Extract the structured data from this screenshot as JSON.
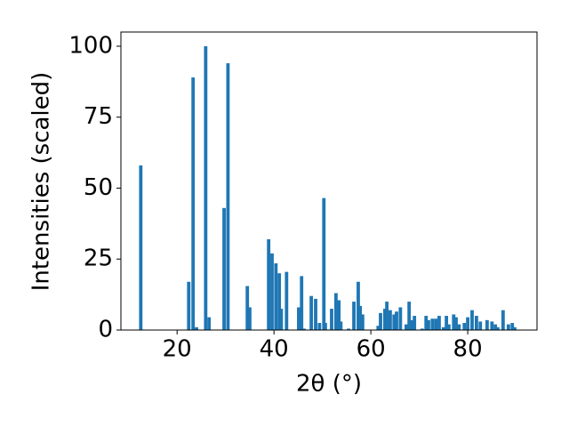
{
  "chart_data": {
    "type": "bar",
    "xlabel": "2θ (°)",
    "ylabel": "Intensities (scaled)",
    "color": "#1f77b4",
    "x": [
      12.5,
      22.4,
      23.3,
      24.0,
      25.9,
      26.6,
      29.7,
      30.5,
      34.5,
      35.0,
      38.9,
      39.6,
      40.4,
      41.1,
      41.5,
      42.6,
      45.1,
      45.7,
      46.2,
      47.7,
      48.6,
      49.4,
      50.3,
      50.6,
      51.9,
      52.8,
      53.4,
      53.8,
      55.4,
      56.5,
      57.4,
      57.8,
      58.3,
      61.5,
      62.0,
      62.9,
      63.3,
      64.0,
      64.8,
      65.3,
      66.1,
      67.3,
      67.9,
      68.4,
      69.0,
      70.6,
      71.4,
      71.9,
      72.7,
      73.4,
      74.1,
      75.0,
      75.6,
      76.1,
      77.1,
      77.6,
      78.2,
      79.3,
      80.0,
      80.9,
      81.8,
      82.6,
      84.0,
      85.0,
      85.7,
      86.2,
      87.3,
      88.4,
      89.2,
      89.7
    ],
    "values": [
      58,
      17,
      89,
      1,
      100,
      4.5,
      43,
      94,
      15.5,
      8,
      32,
      27,
      23.5,
      20,
      7.5,
      20.5,
      8,
      19,
      0.5,
      12,
      11,
      2.5,
      46.5,
      2.5,
      7.5,
      13,
      10.5,
      3,
      0.5,
      10,
      17,
      8.5,
      5.5,
      1.5,
      6,
      7.5,
      10,
      7,
      5.5,
      6.5,
      8,
      2,
      10,
      3.5,
      5,
      0.5,
      5,
      3.5,
      4,
      4,
      5,
      1,
      5,
      2,
      5.5,
      4.5,
      2,
      2.5,
      4.5,
      7,
      5,
      3,
      3.5,
      3,
      2,
      1,
      7,
      2,
      2.5,
      1
    ],
    "xlim": [
      8.4,
      94.3
    ],
    "ylim": [
      0,
      105
    ],
    "xticks": [
      20,
      40,
      60,
      80
    ],
    "yticks": [
      0,
      25,
      50,
      75,
      100
    ]
  }
}
